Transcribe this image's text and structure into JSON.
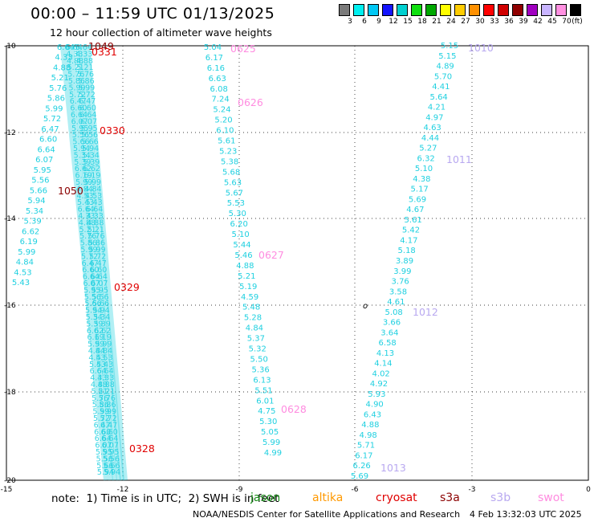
{
  "title": "00:00 – 11:59 UTC 01/13/2025",
  "subtitle": "12 hour collection of altimeter wave heights",
  "colorbar": {
    "unit": "(ft)",
    "colors": [
      "#7a7a7a",
      "#00f0f0",
      "#00c8f5",
      "#1414ff",
      "#00d0d0",
      "#10e010",
      "#00a800",
      "#ffff00",
      "#ffcc00",
      "#ff9000",
      "#ff0000",
      "#d00000",
      "#900000",
      "#a000c0",
      "#c8b4ff",
      "#ff90e0",
      "#000000"
    ],
    "labels": [
      "3",
      "6",
      "9",
      "12",
      "15",
      "18",
      "21",
      "24",
      "27",
      "30",
      "33",
      "36",
      "39",
      "42",
      "45",
      "70"
    ]
  },
  "axes": {
    "x_ticks": [
      "-15",
      "-12",
      "-9",
      "-6",
      "-3",
      "0"
    ],
    "y_ticks": [
      "-10",
      "-12",
      "-14",
      "-16",
      "-18",
      "-20"
    ]
  },
  "tracks": [
    {
      "color": "#1fd0e0",
      "values": [
        "6.64",
        "4.33",
        "4.88",
        "5.21",
        "5.76",
        "5.86",
        "5.99",
        "5.72",
        "6.47",
        "6.60",
        "6.64",
        "6.07",
        "5.95",
        "5.56",
        "5.66",
        "5.94",
        "5.34",
        "5.39",
        "6.62",
        "6.19",
        "5.99",
        "4.84",
        "4.53",
        "5.43"
      ]
    },
    {
      "color": "#1fd0e0",
      "values": [
        "5.04",
        "6.17",
        "6.16",
        "6.63",
        "6.08",
        "7.24",
        "5.24",
        "5.20",
        "6.10",
        "5.61",
        "5.23",
        "5.38",
        "5.68",
        "5.63",
        "5.67",
        "5.53",
        "5.30",
        "6.20",
        "5.10",
        "5.44",
        "5.46",
        "4.88",
        "5.21",
        "5.19",
        "4.59",
        "5.48",
        "5.28",
        "4.84",
        "5.37",
        "5.32",
        "5.50",
        "5.36",
        "6.13",
        "5.51",
        "6.01",
        "4.75",
        "5.30",
        "5.05",
        "5.99",
        "4.99"
      ]
    },
    {
      "color": "#1fd0e0",
      "values": [
        "5.15",
        "5.15",
        "4.89",
        "5.70",
        "4.41",
        "5.64",
        "4.21",
        "4.97",
        "4.63",
        "4.44",
        "5.27",
        "6.32",
        "5.10",
        "4.38",
        "5.17",
        "5.69",
        "4.67",
        "5.61",
        "5.42",
        "4.17",
        "5.18",
        "3.89",
        "3.99",
        "3.76",
        "3.58",
        "4.61",
        "5.08",
        "3.66",
        "3.64",
        "6.58",
        "4.13",
        "4.14",
        "4.02",
        "4.92",
        "5.93",
        "4.90",
        "6.43",
        "4.88",
        "4.98",
        "5.71",
        "6.17",
        "6.26",
        "5.69"
      ]
    }
  ],
  "pass_labels": [
    {
      "text": "1049",
      "sat": "s3a"
    },
    {
      "text": "0331",
      "sat": "cryosat"
    },
    {
      "text": "0330",
      "sat": "cryosat"
    },
    {
      "text": "1050",
      "sat": "s3a"
    },
    {
      "text": "0329",
      "sat": "cryosat"
    },
    {
      "text": "0328",
      "sat": "cryosat"
    },
    {
      "text": "0625",
      "sat": "swot"
    },
    {
      "text": "0626",
      "sat": "swot"
    },
    {
      "text": "0627",
      "sat": "swot"
    },
    {
      "text": "0628",
      "sat": "swot"
    },
    {
      "text": "1010",
      "sat": "s3b"
    },
    {
      "text": "1011",
      "sat": "s3b"
    },
    {
      "text": "1012",
      "sat": "s3b"
    },
    {
      "text": "1013",
      "sat": "s3b"
    }
  ],
  "satellite_colors": {
    "jason": "#1a8f1a",
    "altika": "#ff9900",
    "cryosat": "#e00000",
    "s3a": "#8b0000",
    "s3b": "#b8a8f0",
    "swot": "#ff8ce0"
  },
  "footer": {
    "note": "note:  1) Time is in UTC;  2) SWH is in feet",
    "legend": [
      {
        "label": "jason",
        "color": "#1a8f1a"
      },
      {
        "label": "altika",
        "color": "#ff9900"
      },
      {
        "label": "cryosat",
        "color": "#e00000"
      },
      {
        "label": "s3a",
        "color": "#8b0000"
      },
      {
        "label": "s3b",
        "color": "#b8a8f0"
      },
      {
        "label": "swot",
        "color": "#ff8ce0"
      }
    ],
    "credit": "NOAA/NESDIS Center for Satellite Applications and Research",
    "timestamp": "4 Feb 13:32:03 UTC 2025"
  },
  "marker_symbol": "o"
}
